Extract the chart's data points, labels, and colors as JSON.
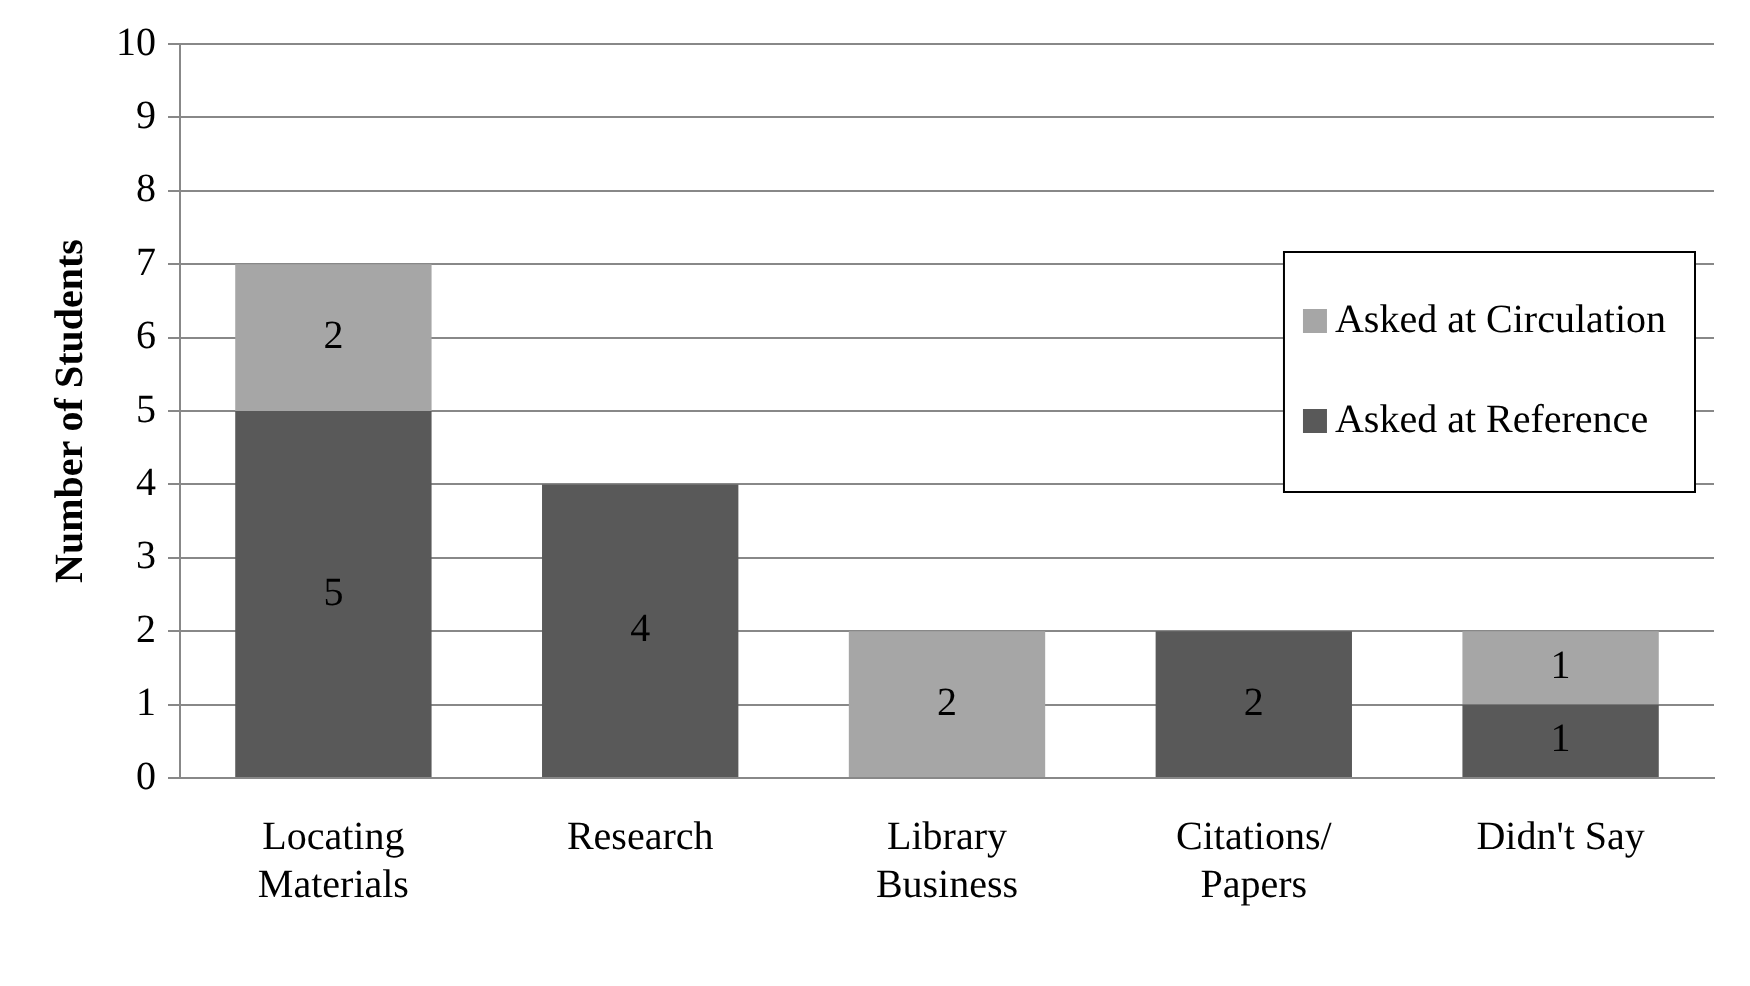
{
  "chart_data": {
    "type": "bar",
    "stacked": true,
    "ylabel": "Number of Students",
    "categories": [
      "Locating\nMaterials",
      "Research",
      "Library\nBusiness",
      "Citations/\nPapers",
      "Didn't Say"
    ],
    "series": [
      {
        "name": "Asked at Reference",
        "color": "#595959",
        "values": [
          5,
          4,
          0,
          2,
          1
        ],
        "value_labels": [
          "5",
          "4",
          null,
          "2",
          "1"
        ]
      },
      {
        "name": "Asked at Circulation",
        "color": "#a6a6a6",
        "values": [
          2,
          0,
          2,
          0,
          1
        ],
        "value_labels": [
          "2",
          null,
          "2",
          null,
          "1"
        ]
      }
    ],
    "ylim": [
      0,
      10
    ],
    "yticks": [
      0,
      1,
      2,
      3,
      4,
      5,
      6,
      7,
      8,
      9,
      10
    ],
    "grid": "y",
    "legend": "right"
  }
}
